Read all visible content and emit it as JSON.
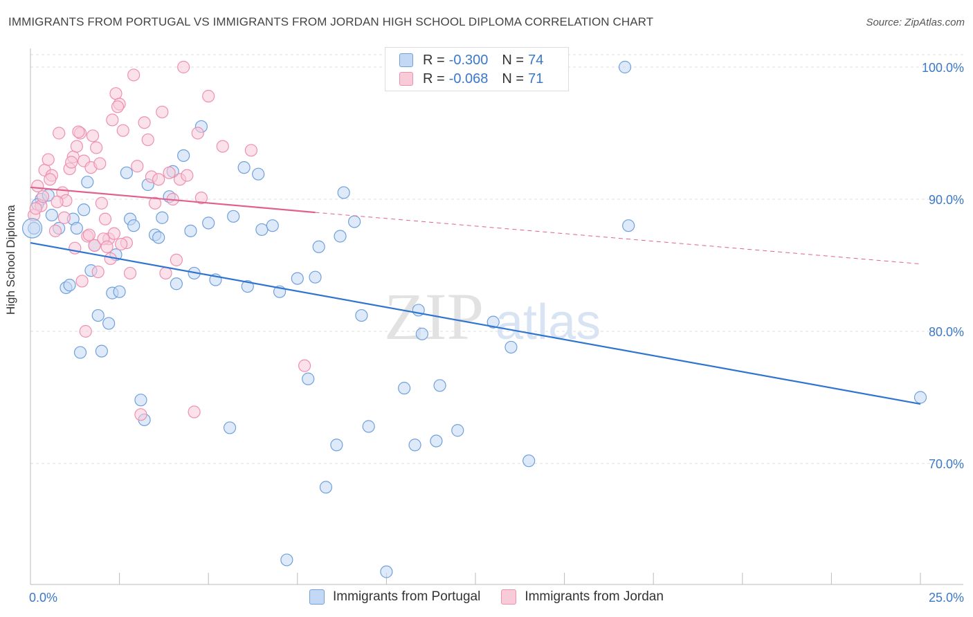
{
  "title": "IMMIGRANTS FROM PORTUGAL VS IMMIGRANTS FROM JORDAN HIGH SCHOOL DIPLOMA CORRELATION CHART",
  "source": "Source: ZipAtlas.com",
  "watermark": {
    "zip": "ZIP",
    "atlas": "atlas"
  },
  "legend_top": [
    {
      "r_label": "R = ",
      "r_value": "-0.300",
      "n_label": "N = ",
      "n_value": "74"
    },
    {
      "r_label": "R = ",
      "r_value": "-0.068",
      "n_label": "N = ",
      "n_value": "71"
    }
  ],
  "colors": {
    "portugal": "#6fa0dc",
    "portugal_fill": "#c3d8f4",
    "portugal_line": "#2f74d0",
    "jordan": "#ef8fb0",
    "jordan_fill": "#f8cbd9",
    "jordan_line": "#e0608e",
    "tick": "#3a78c9",
    "grid": "#dddddd"
  },
  "chart_data": {
    "type": "scatter",
    "xlabel": "",
    "ylabel": "High School Diploma",
    "xlim": [
      0,
      25
    ],
    "ylim": [
      61,
      101
    ],
    "x_tick_labels": [
      "0.0%",
      "25.0%"
    ],
    "y_ticks": [
      70,
      80,
      90,
      100
    ],
    "y_tick_labels": [
      "70.0%",
      "80.0%",
      "90.0%",
      "100.0%"
    ],
    "grid": true,
    "legend": "bottom",
    "series": [
      {
        "name": "Immigrants from Portugal",
        "trend": [
          [
            0.0,
            86.7
          ],
          [
            25.0,
            74.5
          ]
        ],
        "points": [
          [
            0.1,
            87.8
          ],
          [
            0.3,
            90.0
          ],
          [
            0.5,
            90.3
          ],
          [
            0.6,
            88.8
          ],
          [
            0.8,
            87.8
          ],
          [
            1.0,
            83.3
          ],
          [
            1.1,
            83.5
          ],
          [
            1.2,
            88.5
          ],
          [
            1.4,
            78.4
          ],
          [
            1.5,
            89.2
          ],
          [
            1.6,
            91.3
          ],
          [
            1.7,
            84.6
          ],
          [
            1.8,
            86.5
          ],
          [
            1.9,
            81.2
          ],
          [
            2.0,
            78.5
          ],
          [
            2.2,
            80.6
          ],
          [
            2.3,
            82.9
          ],
          [
            2.4,
            85.8
          ],
          [
            2.5,
            83.0
          ],
          [
            2.7,
            92.0
          ],
          [
            2.8,
            88.5
          ],
          [
            2.9,
            88.0
          ],
          [
            3.1,
            74.8
          ],
          [
            3.2,
            73.3
          ],
          [
            3.3,
            91.1
          ],
          [
            3.5,
            87.3
          ],
          [
            3.6,
            87.1
          ],
          [
            3.7,
            88.6
          ],
          [
            3.9,
            90.2
          ],
          [
            4.0,
            92.1
          ],
          [
            4.1,
            83.6
          ],
          [
            4.3,
            93.3
          ],
          [
            4.5,
            87.6
          ],
          [
            4.6,
            84.4
          ],
          [
            4.8,
            95.5
          ],
          [
            5.0,
            88.2
          ],
          [
            5.2,
            83.9
          ],
          [
            5.6,
            72.7
          ],
          [
            5.7,
            88.7
          ],
          [
            6.0,
            92.4
          ],
          [
            6.1,
            83.4
          ],
          [
            6.4,
            91.9
          ],
          [
            6.5,
            87.7
          ],
          [
            6.8,
            88.0
          ],
          [
            7.0,
            83.0
          ],
          [
            7.2,
            62.7
          ],
          [
            7.5,
            84.0
          ],
          [
            7.8,
            76.4
          ],
          [
            8.0,
            84.1
          ],
          [
            8.1,
            86.4
          ],
          [
            8.3,
            68.2
          ],
          [
            8.6,
            71.4
          ],
          [
            8.7,
            87.2
          ],
          [
            8.8,
            90.5
          ],
          [
            9.1,
            88.3
          ],
          [
            9.3,
            81.2
          ],
          [
            9.5,
            72.8
          ],
          [
            10.0,
            61.8
          ],
          [
            10.5,
            75.7
          ],
          [
            10.8,
            71.4
          ],
          [
            10.9,
            81.6
          ],
          [
            11.0,
            79.8
          ],
          [
            11.4,
            71.7
          ],
          [
            11.5,
            75.9
          ],
          [
            12.0,
            72.5
          ],
          [
            13.0,
            80.7
          ],
          [
            13.5,
            78.8
          ],
          [
            14.0,
            70.2
          ],
          [
            14.1,
            100.0
          ],
          [
            16.7,
            100.0
          ],
          [
            16.8,
            88.0
          ],
          [
            25.0,
            75.0
          ],
          [
            0.2,
            89.6
          ],
          [
            1.3,
            87.8
          ]
        ]
      },
      {
        "name": "Immigrants from Jordan",
        "trend": [
          [
            0.0,
            90.9
          ],
          [
            8.0,
            89.0
          ]
        ],
        "trend_dashed": [
          [
            8.0,
            89.0
          ],
          [
            25.0,
            85.1
          ]
        ],
        "points": [
          [
            0.1,
            88.8
          ],
          [
            0.2,
            91.0
          ],
          [
            0.3,
            89.5
          ],
          [
            0.4,
            92.2
          ],
          [
            0.5,
            93.0
          ],
          [
            0.6,
            91.8
          ],
          [
            0.7,
            87.6
          ],
          [
            0.8,
            95.0
          ],
          [
            0.9,
            90.5
          ],
          [
            1.0,
            89.9
          ],
          [
            1.1,
            92.3
          ],
          [
            1.2,
            93.2
          ],
          [
            1.3,
            94.0
          ],
          [
            1.4,
            95.0
          ],
          [
            1.5,
            92.9
          ],
          [
            1.6,
            87.2
          ],
          [
            1.7,
            92.4
          ],
          [
            1.8,
            86.5
          ],
          [
            1.9,
            84.5
          ],
          [
            2.0,
            89.7
          ],
          [
            2.1,
            88.5
          ],
          [
            2.2,
            87.0
          ],
          [
            2.3,
            96.0
          ],
          [
            2.4,
            98.0
          ],
          [
            2.5,
            97.2
          ],
          [
            2.6,
            95.2
          ],
          [
            2.7,
            86.7
          ],
          [
            2.8,
            84.4
          ],
          [
            2.9,
            99.4
          ],
          [
            3.0,
            92.5
          ],
          [
            3.1,
            73.7
          ],
          [
            3.2,
            95.8
          ],
          [
            3.3,
            94.5
          ],
          [
            3.4,
            91.7
          ],
          [
            3.5,
            89.7
          ],
          [
            3.6,
            91.5
          ],
          [
            3.7,
            96.6
          ],
          [
            3.8,
            84.4
          ],
          [
            3.9,
            92.0
          ],
          [
            4.0,
            90.0
          ],
          [
            4.1,
            85.4
          ],
          [
            4.2,
            91.5
          ],
          [
            4.3,
            100.0
          ],
          [
            4.4,
            91.8
          ],
          [
            4.6,
            73.9
          ],
          [
            4.7,
            95.0
          ],
          [
            4.8,
            90.1
          ],
          [
            5.0,
            97.8
          ],
          [
            5.4,
            94.0
          ],
          [
            6.2,
            93.7
          ],
          [
            7.7,
            77.4
          ],
          [
            0.15,
            89.3
          ],
          [
            0.35,
            90.2
          ],
          [
            0.55,
            91.5
          ],
          [
            0.75,
            89.8
          ],
          [
            0.95,
            88.6
          ],
          [
            1.15,
            92.8
          ],
          [
            1.25,
            86.3
          ],
          [
            1.35,
            95.1
          ],
          [
            1.45,
            83.8
          ],
          [
            1.55,
            80.0
          ],
          [
            1.65,
            87.3
          ],
          [
            1.75,
            94.8
          ],
          [
            1.85,
            93.9
          ],
          [
            1.95,
            92.7
          ],
          [
            2.05,
            87.0
          ],
          [
            2.15,
            86.4
          ],
          [
            2.25,
            85.5
          ],
          [
            2.35,
            87.4
          ],
          [
            2.45,
            97.0
          ],
          [
            2.55,
            86.6
          ]
        ]
      }
    ]
  }
}
